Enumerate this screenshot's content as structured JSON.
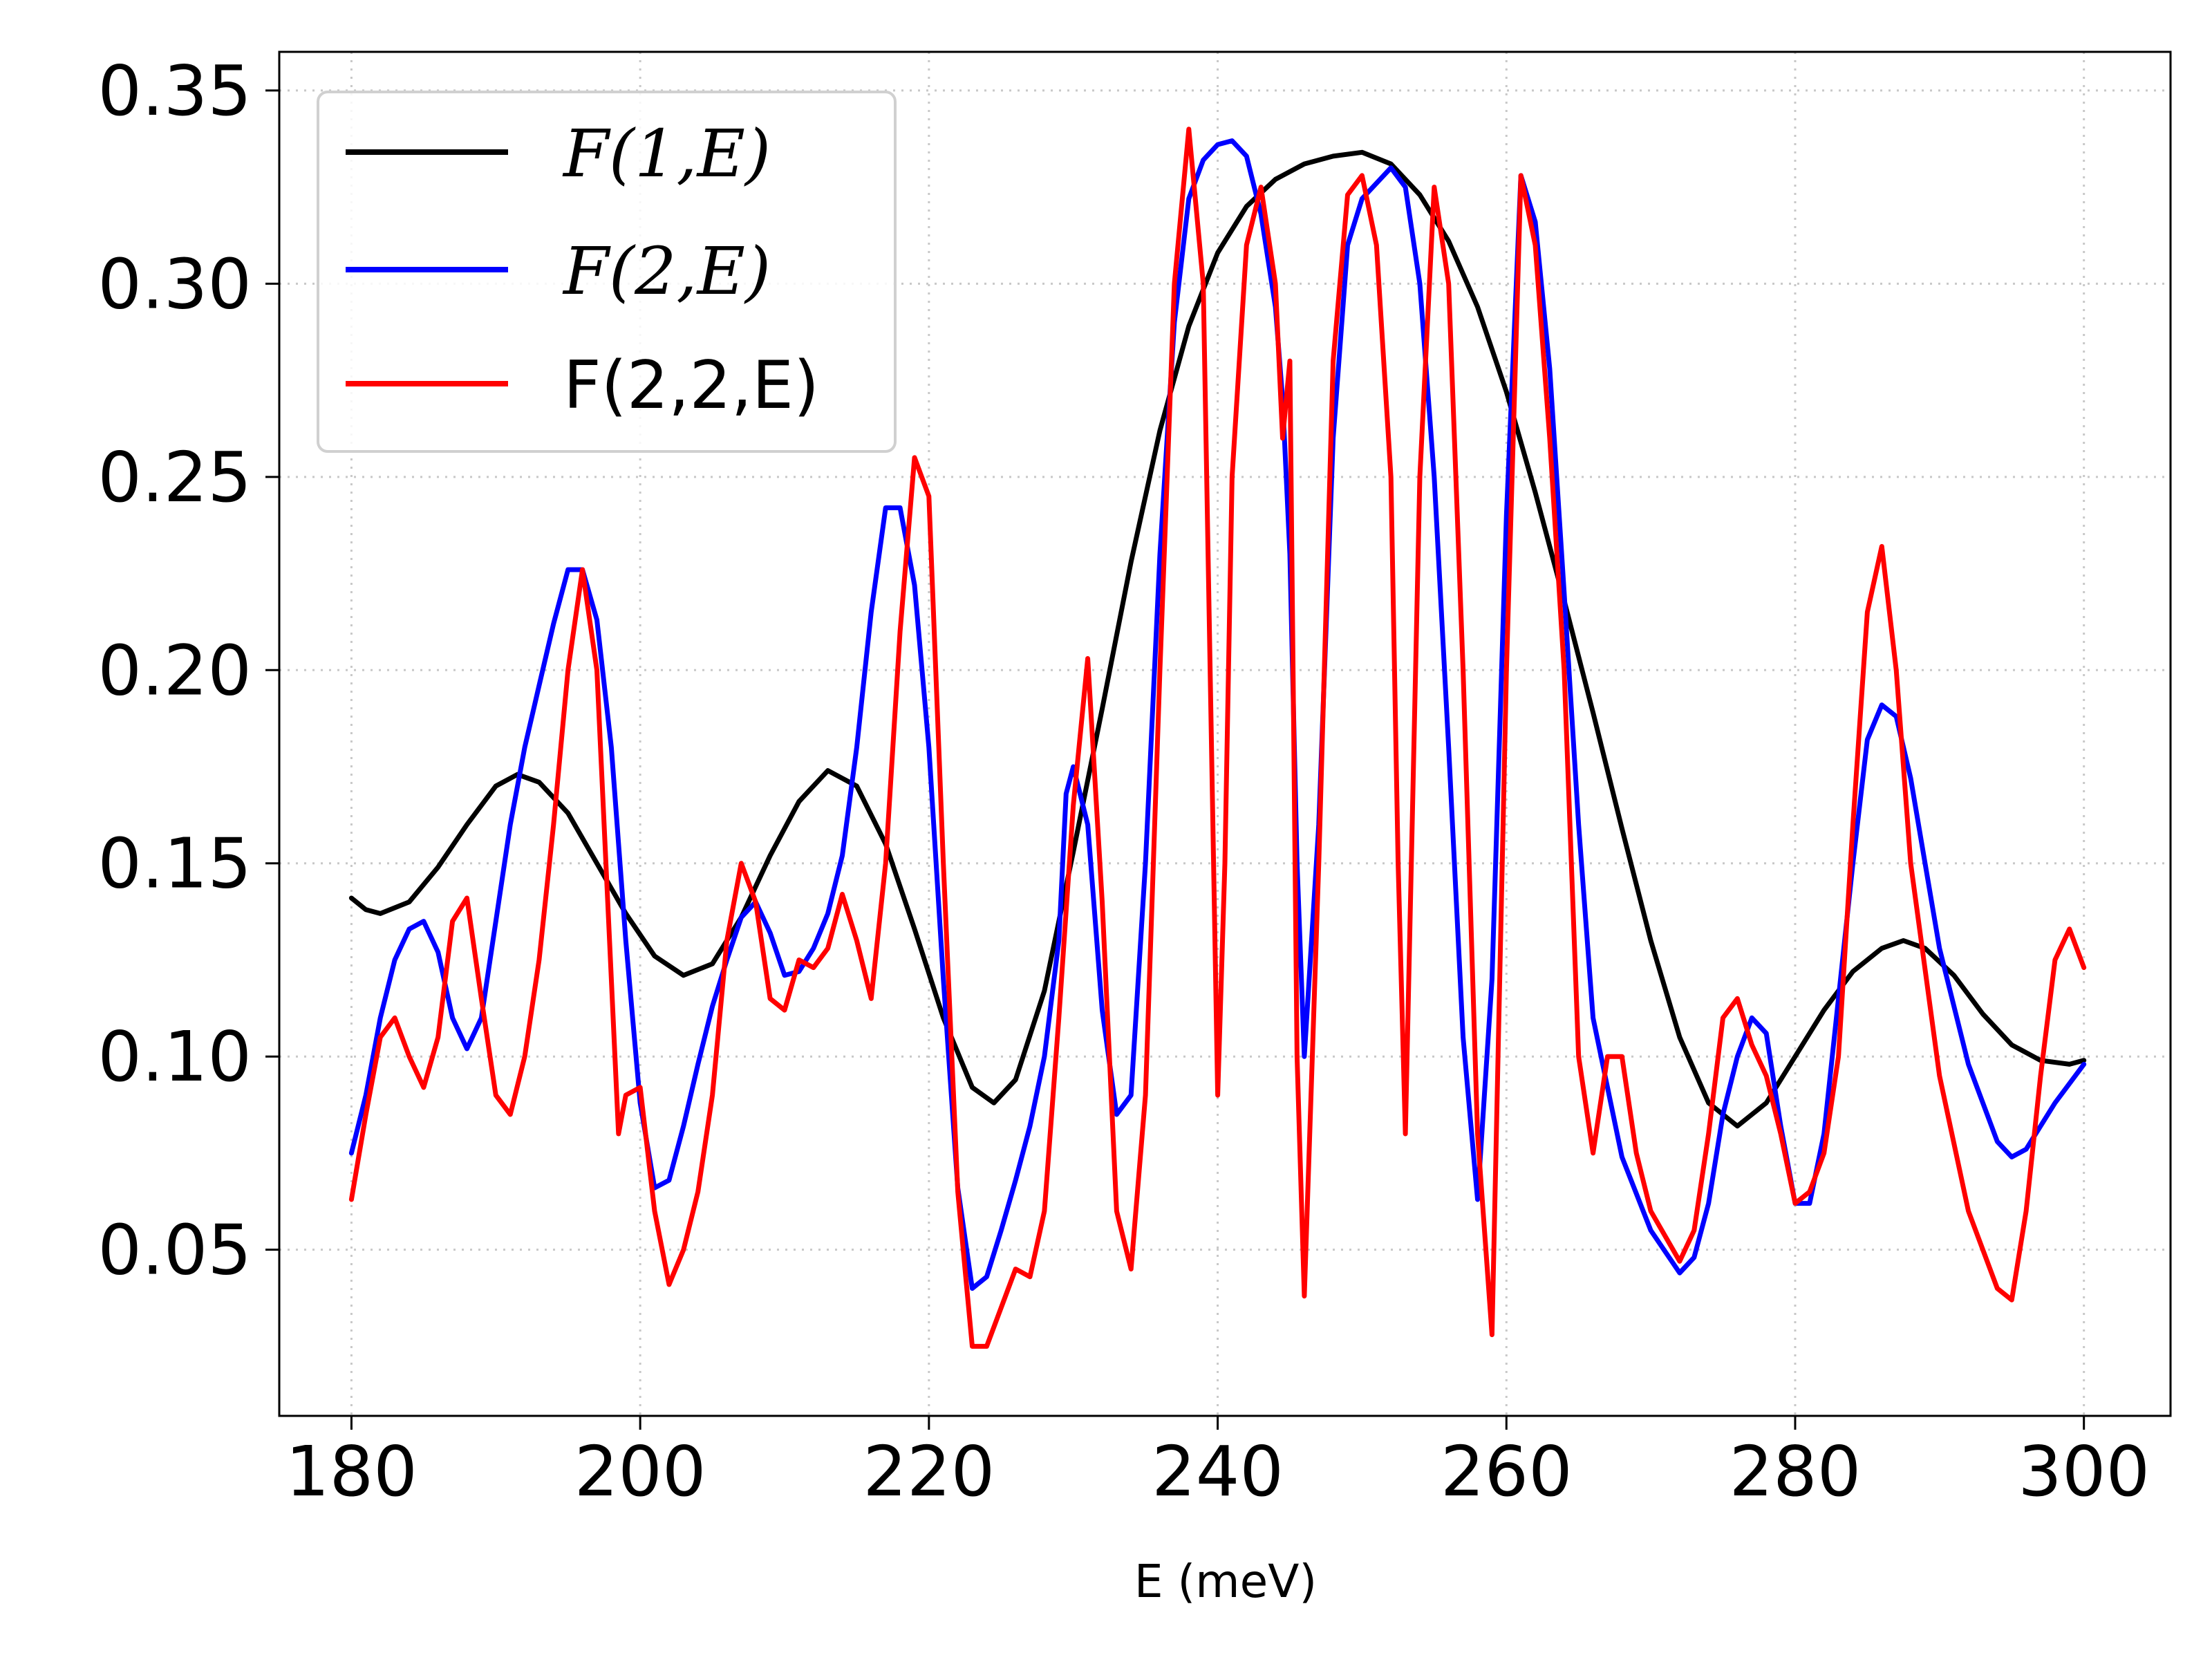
{
  "chart_data": {
    "type": "line",
    "title": "",
    "xlabel": "E (meV)",
    "ylabel": "",
    "xlim": [
      175,
      306
    ],
    "ylim": [
      0.007,
      0.36
    ],
    "xticks": [
      180,
      200,
      220,
      240,
      260,
      280,
      300
    ],
    "xtick_labels": [
      "180",
      "200",
      "220",
      "240",
      "260",
      "280",
      "300"
    ],
    "yticks": [
      0.05,
      0.1,
      0.15,
      0.2,
      0.25,
      0.3,
      0.35
    ],
    "ytick_labels": [
      "0.05",
      "0.10",
      "0.15",
      "0.20",
      "0.25",
      "0.30",
      "0.35"
    ],
    "grid": true,
    "legend_position": "top-left",
    "series": [
      {
        "name": "F(1,E)",
        "color": "#000000",
        "points": [
          [
            180,
            0.141
          ],
          [
            181,
            0.138
          ],
          [
            182,
            0.137
          ],
          [
            184,
            0.14
          ],
          [
            186,
            0.149
          ],
          [
            188,
            0.16
          ],
          [
            190,
            0.17
          ],
          [
            191.5,
            0.173
          ],
          [
            193,
            0.171
          ],
          [
            195,
            0.163
          ],
          [
            197,
            0.15
          ],
          [
            199,
            0.137
          ],
          [
            201,
            0.126
          ],
          [
            203,
            0.121
          ],
          [
            205,
            0.124
          ],
          [
            207,
            0.136
          ],
          [
            209,
            0.152
          ],
          [
            211,
            0.166
          ],
          [
            213,
            0.174
          ],
          [
            215,
            0.17
          ],
          [
            217,
            0.155
          ],
          [
            219,
            0.133
          ],
          [
            221,
            0.11
          ],
          [
            223,
            0.092
          ],
          [
            224.5,
            0.088
          ],
          [
            226,
            0.094
          ],
          [
            228,
            0.117
          ],
          [
            230,
            0.153
          ],
          [
            232,
            0.19
          ],
          [
            234,
            0.228
          ],
          [
            236,
            0.262
          ],
          [
            238,
            0.289
          ],
          [
            240,
            0.308
          ],
          [
            242,
            0.32
          ],
          [
            244,
            0.327
          ],
          [
            246,
            0.331
          ],
          [
            248,
            0.333
          ],
          [
            250,
            0.334
          ],
          [
            252,
            0.331
          ],
          [
            254,
            0.323
          ],
          [
            256,
            0.311
          ],
          [
            258,
            0.294
          ],
          [
            260,
            0.272
          ],
          [
            262,
            0.246
          ],
          [
            264,
            0.218
          ],
          [
            266,
            0.189
          ],
          [
            268,
            0.159
          ],
          [
            270,
            0.13
          ],
          [
            272,
            0.105
          ],
          [
            274,
            0.088
          ],
          [
            276,
            0.082
          ],
          [
            278,
            0.088
          ],
          [
            280,
            0.1
          ],
          [
            282,
            0.112
          ],
          [
            284,
            0.122
          ],
          [
            286,
            0.128
          ],
          [
            287.5,
            0.13
          ],
          [
            289,
            0.128
          ],
          [
            291,
            0.121
          ],
          [
            293,
            0.111
          ],
          [
            295,
            0.103
          ],
          [
            297,
            0.099
          ],
          [
            299,
            0.098
          ],
          [
            300,
            0.099
          ]
        ]
      },
      {
        "name": "F(2,E)",
        "color": "#0000ff",
        "points": [
          [
            180,
            0.075
          ],
          [
            181,
            0.09
          ],
          [
            182,
            0.11
          ],
          [
            183,
            0.125
          ],
          [
            184,
            0.133
          ],
          [
            185,
            0.135
          ],
          [
            186,
            0.127
          ],
          [
            187,
            0.11
          ],
          [
            188,
            0.102
          ],
          [
            189,
            0.11
          ],
          [
            190,
            0.135
          ],
          [
            191,
            0.16
          ],
          [
            192,
            0.18
          ],
          [
            193,
            0.196
          ],
          [
            194,
            0.212
          ],
          [
            195,
            0.226
          ],
          [
            196,
            0.226
          ],
          [
            197,
            0.213
          ],
          [
            198,
            0.18
          ],
          [
            199,
            0.13
          ],
          [
            200,
            0.088
          ],
          [
            201,
            0.066
          ],
          [
            202,
            0.068
          ],
          [
            203,
            0.082
          ],
          [
            204,
            0.098
          ],
          [
            205,
            0.113
          ],
          [
            206,
            0.125
          ],
          [
            207,
            0.136
          ],
          [
            208,
            0.14
          ],
          [
            209,
            0.132
          ],
          [
            210,
            0.121
          ],
          [
            211,
            0.122
          ],
          [
            212,
            0.128
          ],
          [
            213,
            0.137
          ],
          [
            214,
            0.152
          ],
          [
            215,
            0.18
          ],
          [
            216,
            0.215
          ],
          [
            217,
            0.242
          ],
          [
            218,
            0.242
          ],
          [
            219,
            0.222
          ],
          [
            220,
            0.18
          ],
          [
            221,
            0.12
          ],
          [
            222,
            0.066
          ],
          [
            223,
            0.04
          ],
          [
            224,
            0.043
          ],
          [
            225,
            0.055
          ],
          [
            226,
            0.068
          ],
          [
            227,
            0.082
          ],
          [
            228,
            0.1
          ],
          [
            229,
            0.13
          ],
          [
            229.5,
            0.168
          ],
          [
            230,
            0.175
          ],
          [
            231,
            0.16
          ],
          [
            232,
            0.112
          ],
          [
            233,
            0.085
          ],
          [
            234,
            0.09
          ],
          [
            235,
            0.15
          ],
          [
            236,
            0.23
          ],
          [
            237,
            0.29
          ],
          [
            238,
            0.322
          ],
          [
            239,
            0.332
          ],
          [
            240,
            0.336
          ],
          [
            241,
            0.337
          ],
          [
            242,
            0.333
          ],
          [
            243,
            0.318
          ],
          [
            244,
            0.294
          ],
          [
            244.5,
            0.27
          ],
          [
            245,
            0.23
          ],
          [
            245.5,
            0.15
          ],
          [
            246,
            0.1
          ],
          [
            247,
            0.16
          ],
          [
            248,
            0.26
          ],
          [
            249,
            0.31
          ],
          [
            250,
            0.322
          ],
          [
            251,
            0.326
          ],
          [
            252,
            0.33
          ],
          [
            253,
            0.325
          ],
          [
            254,
            0.3
          ],
          [
            255,
            0.25
          ],
          [
            256,
            0.18
          ],
          [
            257,
            0.105
          ],
          [
            258,
            0.063
          ],
          [
            259,
            0.12
          ],
          [
            260,
            0.24
          ],
          [
            261,
            0.328
          ],
          [
            262,
            0.316
          ],
          [
            263,
            0.278
          ],
          [
            264,
            0.22
          ],
          [
            265,
            0.16
          ],
          [
            266,
            0.11
          ],
          [
            268,
            0.074
          ],
          [
            270,
            0.055
          ],
          [
            272,
            0.044
          ],
          [
            273,
            0.048
          ],
          [
            274,
            0.062
          ],
          [
            275,
            0.085
          ],
          [
            276,
            0.1
          ],
          [
            277,
            0.11
          ],
          [
            278,
            0.106
          ],
          [
            279,
            0.082
          ],
          [
            280,
            0.062
          ],
          [
            281,
            0.062
          ],
          [
            282,
            0.08
          ],
          [
            283,
            0.115
          ],
          [
            284,
            0.15
          ],
          [
            285,
            0.182
          ],
          [
            286,
            0.191
          ],
          [
            287,
            0.188
          ],
          [
            288,
            0.172
          ],
          [
            289,
            0.15
          ],
          [
            290,
            0.128
          ],
          [
            292,
            0.098
          ],
          [
            294,
            0.078
          ],
          [
            295,
            0.074
          ],
          [
            296,
            0.076
          ],
          [
            298,
            0.088
          ],
          [
            300,
            0.098
          ]
        ]
      },
      {
        "name": "F(2,2,E)",
        "color": "#ff0000",
        "points": [
          [
            180,
            0.063
          ],
          [
            181,
            0.085
          ],
          [
            182,
            0.105
          ],
          [
            183,
            0.11
          ],
          [
            184,
            0.1
          ],
          [
            185,
            0.092
          ],
          [
            186,
            0.105
          ],
          [
            187,
            0.135
          ],
          [
            188,
            0.141
          ],
          [
            189,
            0.115
          ],
          [
            190,
            0.09
          ],
          [
            191,
            0.085
          ],
          [
            192,
            0.1
          ],
          [
            193,
            0.125
          ],
          [
            194,
            0.16
          ],
          [
            195,
            0.2
          ],
          [
            196,
            0.226
          ],
          [
            197,
            0.2
          ],
          [
            198,
            0.12
          ],
          [
            198.5,
            0.08
          ],
          [
            199,
            0.09
          ],
          [
            200,
            0.092
          ],
          [
            201,
            0.06
          ],
          [
            202,
            0.041
          ],
          [
            203,
            0.05
          ],
          [
            204,
            0.065
          ],
          [
            205,
            0.09
          ],
          [
            206,
            0.13
          ],
          [
            207,
            0.15
          ],
          [
            208,
            0.14
          ],
          [
            209,
            0.115
          ],
          [
            210,
            0.112
          ],
          [
            211,
            0.125
          ],
          [
            212,
            0.123
          ],
          [
            213,
            0.128
          ],
          [
            214,
            0.142
          ],
          [
            215,
            0.13
          ],
          [
            216,
            0.115
          ],
          [
            217,
            0.15
          ],
          [
            218,
            0.21
          ],
          [
            219,
            0.255
          ],
          [
            220,
            0.245
          ],
          [
            221,
            0.15
          ],
          [
            222,
            0.065
          ],
          [
            223,
            0.025
          ],
          [
            224,
            0.025
          ],
          [
            225,
            0.035
          ],
          [
            226,
            0.045
          ],
          [
            227,
            0.043
          ],
          [
            228,
            0.06
          ],
          [
            229,
            0.11
          ],
          [
            230,
            0.165
          ],
          [
            231,
            0.203
          ],
          [
            232,
            0.14
          ],
          [
            233,
            0.06
          ],
          [
            234,
            0.045
          ],
          [
            235,
            0.09
          ],
          [
            236,
            0.2
          ],
          [
            237,
            0.3
          ],
          [
            238,
            0.34
          ],
          [
            239,
            0.3
          ],
          [
            240,
            0.09
          ],
          [
            240.5,
            0.15
          ],
          [
            241,
            0.25
          ],
          [
            242,
            0.31
          ],
          [
            243,
            0.325
          ],
          [
            244,
            0.3
          ],
          [
            244.5,
            0.26
          ],
          [
            245,
            0.28
          ],
          [
            245.5,
            0.1
          ],
          [
            246,
            0.038
          ],
          [
            247,
            0.15
          ],
          [
            248,
            0.28
          ],
          [
            249,
            0.323
          ],
          [
            250,
            0.328
          ],
          [
            251,
            0.31
          ],
          [
            252,
            0.25
          ],
          [
            252.5,
            0.15
          ],
          [
            253,
            0.08
          ],
          [
            254,
            0.25
          ],
          [
            255,
            0.325
          ],
          [
            256,
            0.3
          ],
          [
            257,
            0.2
          ],
          [
            258,
            0.08
          ],
          [
            259,
            0.028
          ],
          [
            260,
            0.2
          ],
          [
            261,
            0.328
          ],
          [
            262,
            0.31
          ],
          [
            263,
            0.26
          ],
          [
            264,
            0.2
          ],
          [
            265,
            0.1
          ],
          [
            266,
            0.075
          ],
          [
            267,
            0.1
          ],
          [
            268,
            0.1
          ],
          [
            269,
            0.075
          ],
          [
            270,
            0.06
          ],
          [
            272,
            0.047
          ],
          [
            273,
            0.055
          ],
          [
            274,
            0.08
          ],
          [
            275,
            0.11
          ],
          [
            276,
            0.115
          ],
          [
            277,
            0.103
          ],
          [
            278,
            0.095
          ],
          [
            279,
            0.08
          ],
          [
            280,
            0.062
          ],
          [
            281,
            0.065
          ],
          [
            282,
            0.075
          ],
          [
            283,
            0.1
          ],
          [
            284,
            0.16
          ],
          [
            285,
            0.215
          ],
          [
            286,
            0.232
          ],
          [
            287,
            0.2
          ],
          [
            288,
            0.15
          ],
          [
            290,
            0.095
          ],
          [
            292,
            0.06
          ],
          [
            294,
            0.04
          ],
          [
            295,
            0.037
          ],
          [
            296,
            0.06
          ],
          [
            297,
            0.095
          ],
          [
            298,
            0.125
          ],
          [
            299,
            0.133
          ],
          [
            300,
            0.123
          ]
        ]
      }
    ]
  }
}
